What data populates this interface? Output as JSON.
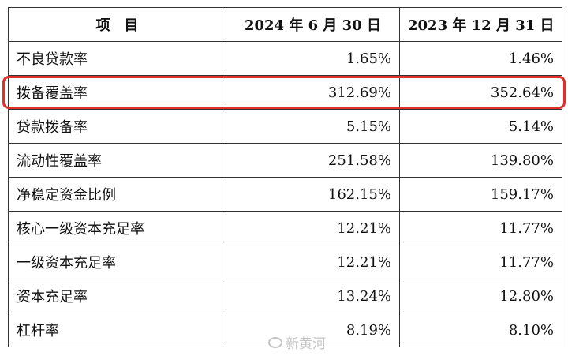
{
  "table": {
    "headers": [
      "项　目",
      "2024 年 6 月 30 日",
      "2023 年 12 月 31 日"
    ],
    "rows": [
      {
        "name": "不良贷款率",
        "h1": "1.65%",
        "h2": "1.46%"
      },
      {
        "name": "拨备覆盖率",
        "h1": "312.69%",
        "h2": "352.64%"
      },
      {
        "name": "贷款拨备率",
        "h1": "5.15%",
        "h2": "5.14%"
      },
      {
        "name": "流动性覆盖率",
        "h1": "251.58%",
        "h2": "139.80%"
      },
      {
        "name": "净稳定资金比例",
        "h1": "162.15%",
        "h2": "159.17%"
      },
      {
        "name": "核心一级资本充足率",
        "h1": "12.21%",
        "h2": "11.77%"
      },
      {
        "name": "一级资本充足率",
        "h1": "12.21%",
        "h2": "11.77%"
      },
      {
        "name": "资本充足率",
        "h1": "13.24%",
        "h2": "12.80%"
      },
      {
        "name": "杠杆率",
        "h1": "8.19%",
        "h2": "8.10%"
      }
    ]
  },
  "highlight": {
    "row_label": "拨备覆盖率",
    "color": "#e0302a"
  },
  "watermark": {
    "text": "新黄河",
    "icon": "weibo-logo-icon"
  }
}
